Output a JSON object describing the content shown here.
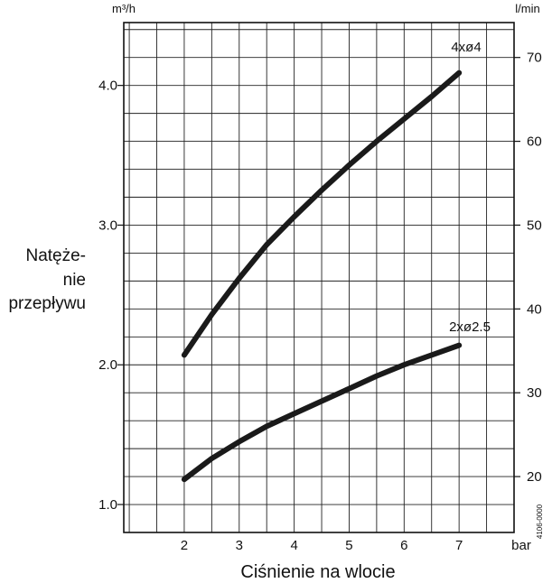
{
  "chart_data": {
    "type": "line",
    "xlabel": "Ciśnienie na wlocie",
    "x_unit": "bar",
    "ylabel_lines": [
      "Natęże-",
      "nie",
      "przepływu"
    ],
    "y_unit_left": "m³/h",
    "y_unit_right": "l/min",
    "xlim": [
      0.9,
      8.0
    ],
    "ylim": [
      0.8,
      4.45
    ],
    "x_ticks": [
      2,
      3,
      4,
      5,
      6,
      7
    ],
    "y_ticks_left": [
      1.0,
      2.0,
      3.0,
      4.0
    ],
    "y_ticks_right": [
      20,
      30,
      40,
      50,
      60,
      70
    ],
    "grid": true,
    "figure_code": "4106-0000",
    "series": [
      {
        "name": "4xø4",
        "x": [
          2,
          2.5,
          3,
          3.5,
          4,
          4.5,
          5,
          5.5,
          6,
          6.5,
          7
        ],
        "y": [
          2.07,
          2.36,
          2.62,
          2.86,
          3.06,
          3.25,
          3.43,
          3.6,
          3.76,
          3.92,
          4.09
        ]
      },
      {
        "name": "2xø2.5",
        "x": [
          2,
          2.5,
          3,
          3.5,
          4,
          4.5,
          5,
          5.5,
          6,
          6.5,
          7
        ],
        "y": [
          1.18,
          1.33,
          1.45,
          1.56,
          1.65,
          1.74,
          1.83,
          1.92,
          2.0,
          2.07,
          2.14
        ]
      }
    ]
  }
}
